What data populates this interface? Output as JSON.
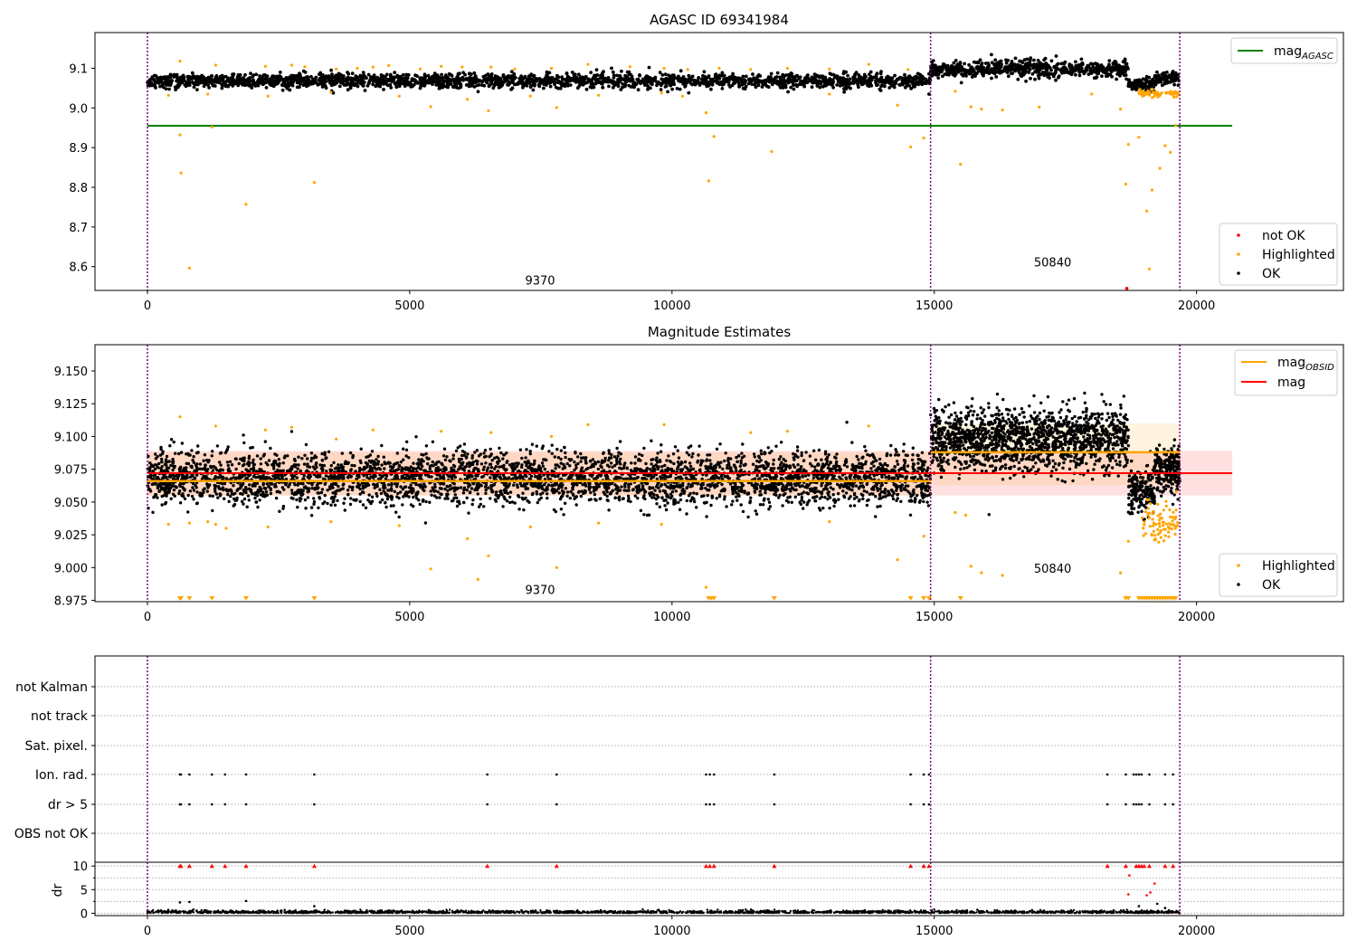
{
  "chart_data": [
    {
      "type": "scatter",
      "title": "AGASC ID 69341984",
      "xlim": [
        -1000,
        22800
      ],
      "ylim": [
        8.54,
        9.19
      ],
      "xticks": [
        0,
        5000,
        10000,
        15000,
        20000
      ],
      "yticks": [
        8.6,
        8.7,
        8.8,
        8.9,
        9.0,
        9.1
      ],
      "ytick_labels": [
        "8.6",
        "8.7",
        "8.8",
        "8.9",
        "9.0",
        "9.1"
      ],
      "obs_boundaries": [
        0,
        14930,
        19680
      ],
      "obsid_labels": [
        {
          "text": "9370",
          "x": 7200,
          "y": 8.555
        },
        {
          "text": "50840",
          "x": 16900,
          "y": 8.6
        }
      ],
      "lines": [
        {
          "name": "mag_AGASC",
          "label_base": "mag",
          "label_sub": "AGASC",
          "y": 8.955,
          "x0": 0,
          "x1": 20680,
          "color": "#008000"
        }
      ],
      "segments": [
        {
          "x0": 0,
          "x1": 14930,
          "mean": 9.068,
          "std": 0.009,
          "n": 2200
        },
        {
          "x0": 14930,
          "x1": 18700,
          "mean": 9.098,
          "std": 0.011,
          "n": 620
        },
        {
          "x0": 18700,
          "x1": 19200,
          "mean": 9.058,
          "std": 0.008,
          "n": 90
        },
        {
          "x0": 19200,
          "x1": 19680,
          "mean": 9.074,
          "std": 0.008,
          "n": 80
        }
      ],
      "highlighted_points": [
        [
          620,
          8.932
        ],
        [
          640,
          8.836
        ],
        [
          800,
          8.596
        ],
        [
          1230,
          8.952
        ],
        [
          1880,
          8.757
        ],
        [
          3180,
          8.812
        ],
        [
          620,
          9.118
        ],
        [
          1300,
          9.108
        ],
        [
          2250,
          9.105
        ],
        [
          2750,
          9.108
        ],
        [
          3000,
          9.104
        ],
        [
          3600,
          9.098
        ],
        [
          4000,
          9.1
        ],
        [
          4300,
          9.103
        ],
        [
          4600,
          9.107
        ],
        [
          5200,
          9.098
        ],
        [
          5600,
          9.105
        ],
        [
          6000,
          9.103
        ],
        [
          6550,
          9.103
        ],
        [
          7000,
          9.098
        ],
        [
          7700,
          9.1
        ],
        [
          8400,
          9.11
        ],
        [
          9200,
          9.104
        ],
        [
          9850,
          9.1
        ],
        [
          10300,
          9.097
        ],
        [
          10900,
          9.1
        ],
        [
          11500,
          9.097
        ],
        [
          12200,
          9.1
        ],
        [
          13000,
          9.098
        ],
        [
          13750,
          9.11
        ],
        [
          14500,
          9.097
        ],
        [
          400,
          9.032
        ],
        [
          1150,
          9.035
        ],
        [
          2300,
          9.03
        ],
        [
          3500,
          9.04
        ],
        [
          4800,
          9.03
        ],
        [
          5400,
          9.003
        ],
        [
          6100,
          9.022
        ],
        [
          6500,
          8.993
        ],
        [
          7300,
          9.03
        ],
        [
          7800,
          9.001
        ],
        [
          8600,
          9.032
        ],
        [
          9800,
          9.038
        ],
        [
          10200,
          9.03
        ],
        [
          10650,
          8.988
        ],
        [
          10700,
          8.816
        ],
        [
          10800,
          8.928
        ],
        [
          11900,
          8.89
        ],
        [
          13000,
          9.035
        ],
        [
          14300,
          9.007
        ],
        [
          14550,
          8.902
        ],
        [
          14800,
          8.924
        ],
        [
          15400,
          9.042
        ],
        [
          15500,
          8.858
        ],
        [
          15700,
          9.003
        ],
        [
          15900,
          8.997
        ],
        [
          16300,
          8.995
        ],
        [
          17000,
          9.002
        ],
        [
          18000,
          9.035
        ],
        [
          18550,
          8.997
        ],
        [
          18650,
          8.808
        ],
        [
          18700,
          8.908
        ],
        [
          18900,
          8.926
        ],
        [
          19050,
          8.74
        ],
        [
          19100,
          8.594
        ],
        [
          19150,
          8.793
        ],
        [
          19300,
          8.848
        ],
        [
          19500,
          8.888
        ],
        [
          19600,
          8.956
        ],
        [
          19400,
          8.905
        ]
      ],
      "notok_points": [
        [
          18670,
          8.545
        ]
      ],
      "legend_top": [
        {
          "name": "mag_AGASC",
          "label_base": "mag",
          "label_sub": "AGASC",
          "color": "#008000",
          "kind": "line"
        }
      ],
      "legend_bottom": [
        {
          "name": "not OK",
          "color": "#ff0000",
          "kind": "dot"
        },
        {
          "name": "Highlighted",
          "color": "#ffa500",
          "kind": "dot"
        },
        {
          "name": "OK",
          "color": "#000000",
          "kind": "dot"
        }
      ]
    },
    {
      "type": "scatter",
      "title": "Magnitude Estimates",
      "xlim": [
        -1000,
        22800
      ],
      "ylim": [
        8.974,
        9.17
      ],
      "xticks": [
        0,
        5000,
        10000,
        15000,
        20000
      ],
      "yticks": [
        8.975,
        9.0,
        9.025,
        9.05,
        9.075,
        9.1,
        9.125,
        9.15
      ],
      "ytick_labels": [
        "8.975",
        "9.000",
        "9.025",
        "9.050",
        "9.075",
        "9.100",
        "9.125",
        "9.150"
      ],
      "obs_boundaries": [
        0,
        14930,
        19680
      ],
      "obsid_labels": [
        {
          "text": "9370",
          "x": 7200,
          "y": 8.98
        },
        {
          "text": "50840",
          "x": 16900,
          "y": 8.996
        }
      ],
      "mag": {
        "y": 9.072,
        "band": [
          9.055,
          9.089
        ],
        "x0": 0,
        "x1": 20680
      },
      "mag_obsid": [
        {
          "x0": 0,
          "x1": 14930,
          "y": 9.066,
          "band": [
            9.055,
            9.088
          ]
        },
        {
          "x0": 14930,
          "x1": 19680,
          "y": 9.088,
          "band": [
            9.063,
            9.11
          ]
        }
      ],
      "segments": [
        {
          "x0": 0,
          "x1": 14930,
          "mean": 9.068,
          "std": 0.01,
          "n": 3800
        },
        {
          "x0": 14930,
          "x1": 18700,
          "mean": 9.098,
          "std": 0.012,
          "n": 1500
        },
        {
          "x0": 18700,
          "x1": 19200,
          "mean": 9.058,
          "std": 0.008,
          "n": 200
        },
        {
          "x0": 19200,
          "x1": 19680,
          "mean": 9.075,
          "std": 0.009,
          "n": 200
        }
      ],
      "highlighted_points": [
        [
          620,
          9.115
        ],
        [
          1300,
          9.108
        ],
        [
          2250,
          9.105
        ],
        [
          2750,
          9.107
        ],
        [
          3600,
          9.098
        ],
        [
          4300,
          9.105
        ],
        [
          5600,
          9.104
        ],
        [
          6550,
          9.103
        ],
        [
          7700,
          9.1
        ],
        [
          8400,
          9.109
        ],
        [
          9850,
          9.109
        ],
        [
          11500,
          9.103
        ],
        [
          12200,
          9.104
        ],
        [
          13750,
          9.108
        ],
        [
          400,
          9.033
        ],
        [
          800,
          9.034
        ],
        [
          1150,
          9.035
        ],
        [
          1300,
          9.033
        ],
        [
          1500,
          9.03
        ],
        [
          2300,
          9.031
        ],
        [
          3500,
          9.035
        ],
        [
          4800,
          9.032
        ],
        [
          5400,
          8.999
        ],
        [
          6100,
          9.022
        ],
        [
          6300,
          8.991
        ],
        [
          6500,
          9.009
        ],
        [
          7300,
          9.031
        ],
        [
          7800,
          9.0
        ],
        [
          8600,
          9.034
        ],
        [
          9800,
          9.033
        ],
        [
          10650,
          8.985
        ],
        [
          13000,
          9.035
        ],
        [
          14300,
          9.006
        ],
        [
          14800,
          9.024
        ],
        [
          15400,
          9.042
        ],
        [
          15600,
          9.04
        ],
        [
          15700,
          9.001
        ],
        [
          15900,
          8.996
        ],
        [
          16300,
          8.994
        ],
        [
          18550,
          8.996
        ],
        [
          18700,
          9.02
        ]
      ],
      "highlighted_clipped_x": [
        620,
        640,
        800,
        1230,
        1880,
        3180,
        10700,
        10750,
        10800,
        11950,
        14550,
        14800,
        14900,
        15500,
        18650,
        18700,
        18900,
        18950,
        19000,
        19050,
        19100,
        19150,
        19200,
        19250,
        19300,
        19350,
        19400,
        19450,
        19500,
        19550,
        19600
      ],
      "dip_highlighted": {
        "x0": 18950,
        "x1": 19650,
        "mean": 9.035,
        "std": 0.007,
        "n": 80
      },
      "legend_top": [
        {
          "name": "mag_OBSID",
          "label_base": "mag",
          "label_sub": "OBSID",
          "color": "#ffa500",
          "kind": "line"
        },
        {
          "name": "mag",
          "label_base": "mag",
          "label_sub": "",
          "color": "#ff0000",
          "kind": "line"
        }
      ],
      "legend_bottom": [
        {
          "name": "Highlighted",
          "color": "#ffa500",
          "kind": "dot"
        },
        {
          "name": "OK",
          "color": "#000000",
          "kind": "dot"
        }
      ]
    },
    {
      "type": "scatter",
      "title": "",
      "xlim": [
        -1000,
        22800
      ],
      "xticks": [
        0,
        5000,
        10000,
        15000,
        20000
      ],
      "obs_boundaries": [
        0,
        14930,
        19680
      ],
      "flag_rows": [
        "not Kalman",
        "not track",
        "Sat. pixel.",
        "Ion. rad.",
        "dr > 5",
        "OBS not OK"
      ],
      "flag_x": [
        620,
        640,
        800,
        1230,
        1480,
        1880,
        3180,
        6480,
        7800,
        10650,
        10720,
        10800,
        11950,
        14550,
        14800,
        14900,
        18300,
        18650,
        18800,
        18850,
        18900,
        18950,
        19100,
        19400,
        19550
      ],
      "dr_ylabel": "dr",
      "dr_ylim": [
        -0.5,
        10.8
      ],
      "dr_yticks": [
        0,
        5,
        10
      ],
      "dr_yminor": [
        2.5,
        7.5
      ],
      "dr_outliers": [
        [
          620,
          2.3
        ],
        [
          800,
          2.4
        ],
        [
          1880,
          2.6
        ],
        [
          3180,
          1.5
        ],
        [
          18700,
          4.0
        ],
        [
          18720,
          8.0
        ],
        [
          19050,
          3.8
        ],
        [
          19120,
          4.4
        ],
        [
          19200,
          6.3
        ],
        [
          18900,
          1.5
        ],
        [
          19250,
          2.0
        ],
        [
          19400,
          1.1
        ]
      ],
      "dr_capped_x": [
        620,
        640,
        800,
        1230,
        1480,
        1880,
        3180,
        6480,
        7800,
        10650,
        10720,
        10800,
        11950,
        14550,
        14800,
        14900,
        18300,
        18650,
        18850,
        18900,
        18950,
        19000,
        19100,
        19400,
        19550
      ]
    }
  ]
}
